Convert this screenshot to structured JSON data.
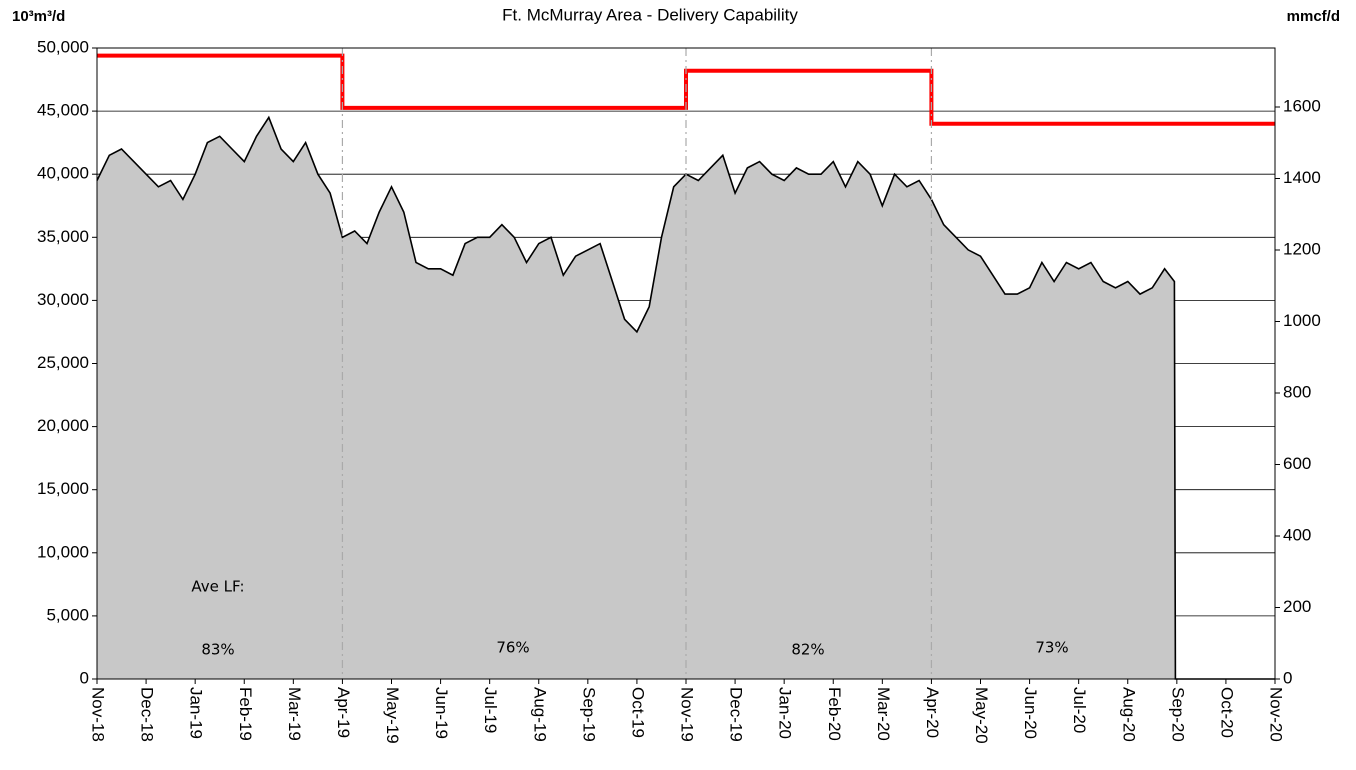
{
  "chart_data": {
    "type": "area",
    "title": "Ft. McMurray Area - Delivery Capability",
    "ylabel": "10³m³/d",
    "y2label": "mmcf/d",
    "xlim": [
      0,
      24
    ],
    "xticks": [
      {
        "value": 0,
        "label": "Nov-18"
      },
      {
        "value": 1,
        "label": "Dec-18"
      },
      {
        "value": 2,
        "label": "Jan-19"
      },
      {
        "value": 3,
        "label": "Feb-19"
      },
      {
        "value": 4,
        "label": "Mar-19"
      },
      {
        "value": 5,
        "label": "Apr-19"
      },
      {
        "value": 6,
        "label": "May-19"
      },
      {
        "value": 7,
        "label": "Jun-19"
      },
      {
        "value": 8,
        "label": "Jul-19"
      },
      {
        "value": 9,
        "label": "Aug-19"
      },
      {
        "value": 10,
        "label": "Sep-19"
      },
      {
        "value": 11,
        "label": "Oct-19"
      },
      {
        "value": 12,
        "label": "Nov-19"
      },
      {
        "value": 13,
        "label": "Dec-19"
      },
      {
        "value": 14,
        "label": "Jan-20"
      },
      {
        "value": 15,
        "label": "Feb-20"
      },
      {
        "value": 16,
        "label": "Mar-20"
      },
      {
        "value": 17,
        "label": "Apr-20"
      },
      {
        "value": 18,
        "label": "May-20"
      },
      {
        "value": 19,
        "label": "Jun-20"
      },
      {
        "value": 20,
        "label": "Jul-20"
      },
      {
        "value": 21,
        "label": "Aug-20"
      },
      {
        "value": 22,
        "label": "Sep-20"
      },
      {
        "value": 23,
        "label": "Oct-20"
      },
      {
        "value": 24,
        "label": "Nov-20"
      }
    ],
    "ylim": [
      0,
      50000
    ],
    "yticks": [
      0,
      {
        "value": 5000,
        "label": "5,000"
      },
      {
        "value": 10000,
        "label": "10,000"
      },
      {
        "value": 15000,
        "label": "15,000"
      },
      {
        "value": 20000,
        "label": "20,000"
      },
      {
        "value": 25000,
        "label": "25,000"
      },
      {
        "value": 30000,
        "label": "30,000"
      },
      {
        "value": 35000,
        "label": "35,000"
      },
      {
        "value": 40000,
        "label": "40,000"
      },
      {
        "value": 45000,
        "label": "45,000"
      },
      {
        "value": 50000,
        "label": "50,000"
      }
    ],
    "y2lim": [
      0,
      1765
    ],
    "y2ticks": [
      0,
      200,
      400,
      600,
      800,
      1000,
      1200,
      1400,
      1600
    ],
    "grid": true,
    "series": [
      {
        "color": "#000000",
        "fill": "#c8c8c8",
        "x": [
          0,
          0.25,
          0.5,
          0.75,
          1,
          1.25,
          1.5,
          1.75,
          2,
          2.25,
          2.5,
          2.75,
          3,
          3.25,
          3.5,
          3.75,
          4,
          4.25,
          4.5,
          4.75,
          5,
          5.25,
          5.5,
          5.75,
          6,
          6.25,
          6.5,
          6.75,
          7,
          7.25,
          7.5,
          7.75,
          8,
          8.25,
          8.5,
          8.75,
          9,
          9.25,
          9.5,
          9.75,
          10,
          10.25,
          10.5,
          10.75,
          11,
          11.25,
          11.5,
          11.75,
          12,
          12.25,
          12.5,
          12.75,
          13,
          13.25,
          13.5,
          13.75,
          14,
          14.25,
          14.5,
          14.75,
          15,
          15.25,
          15.5,
          15.75,
          16,
          16.25,
          16.5,
          16.75,
          17,
          17.25,
          17.5,
          17.75,
          18,
          18.25,
          18.5,
          18.75,
          19,
          19.25,
          19.5,
          19.75,
          20,
          20.25,
          20.5,
          20.75,
          21,
          21.25,
          21.5,
          21.75,
          21.95,
          21.97,
          24
        ],
        "values": [
          39500,
          41500,
          42000,
          41000,
          40000,
          39000,
          39500,
          38000,
          40000,
          42500,
          43000,
          42000,
          41000,
          43000,
          44500,
          42000,
          41000,
          42500,
          40000,
          38500,
          35000,
          35500,
          34500,
          37000,
          39000,
          37000,
          33000,
          32500,
          32500,
          32000,
          34500,
          35000,
          35000,
          36000,
          35000,
          33000,
          34500,
          35000,
          32000,
          33500,
          34000,
          34500,
          31500,
          28500,
          27500,
          29500,
          35000,
          39000,
          40000,
          39500,
          40500,
          41500,
          38500,
          40500,
          41000,
          40000,
          39500,
          40500,
          40000,
          40000,
          41000,
          39000,
          41000,
          40000,
          37500,
          40000,
          39000,
          39500,
          38000,
          36000,
          35000,
          34000,
          33500,
          32000,
          30500,
          30500,
          31000,
          33000,
          31500,
          33000,
          32500,
          33000,
          31500,
          31000,
          31500,
          30500,
          31000,
          32500,
          31500,
          0,
          0
        ]
      },
      {
        "color": "#ff0000",
        "x": [
          0,
          5,
          5,
          12,
          12,
          17,
          17,
          24
        ],
        "values": [
          49400,
          49400,
          45250,
          45250,
          48200,
          48200,
          44000,
          44000
        ]
      }
    ],
    "annotations": [
      "Ave LF:",
      "83%",
      "76%",
      "82%",
      "73%"
    ]
  }
}
